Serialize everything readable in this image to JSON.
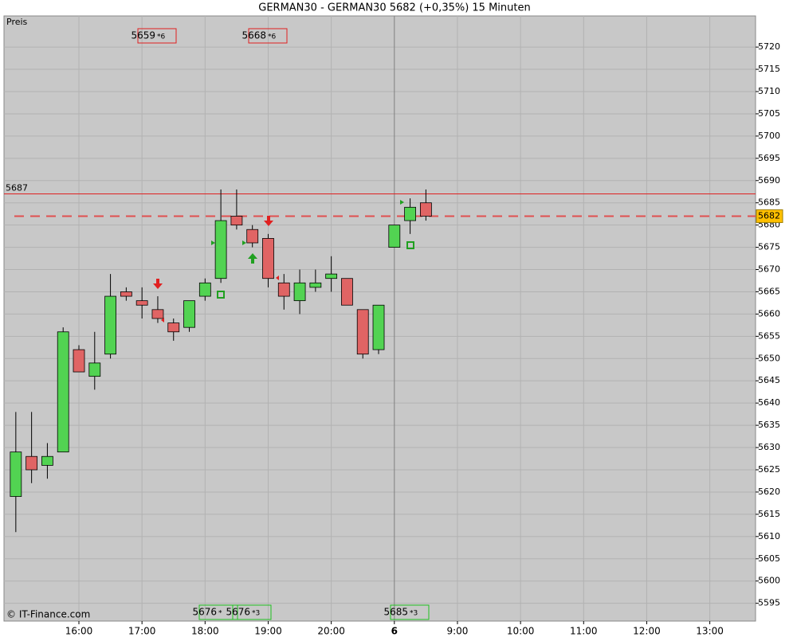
{
  "chart_data": {
    "type": "candlestick",
    "title": "GERMAN30 - GERMAN30    5682 (+0,35%)    15 Minuten",
    "panel_label": "Preis",
    "footer": "© IT-Finance.com",
    "x": [
      0,
      1,
      2,
      3,
      4,
      5,
      6,
      7,
      8,
      9,
      10,
      11,
      12,
      13,
      14,
      15,
      16,
      17,
      18,
      19,
      20,
      21,
      22,
      23,
      24,
      25,
      26
    ],
    "open": [
      5619,
      5628,
      5626,
      5629,
      5652,
      5646,
      5651,
      5665,
      5663,
      5661,
      5658,
      5657,
      5664,
      5668,
      5682,
      5679,
      5677,
      5667,
      5663,
      5666,
      5668,
      5668,
      5661,
      5652,
      5675,
      5681,
      5685
    ],
    "high": [
      5638,
      5638,
      5631,
      5657,
      5653,
      5656,
      5669,
      5666,
      5666,
      5664,
      5659,
      5663,
      5668,
      5688,
      5688,
      5680,
      5678,
      5669,
      5670,
      5670,
      5673,
      5668,
      5661,
      5662,
      5680,
      5686,
      5688
    ],
    "low": [
      5611,
      5622,
      5623,
      5629,
      5647,
      5643,
      5650,
      5663,
      5659,
      5658,
      5654,
      5656,
      5663,
      5667,
      5679,
      5675,
      5666,
      5661,
      5660,
      5665,
      5665,
      5662,
      5650,
      5651,
      5675,
      5678,
      5681
    ],
    "close": [
      5629,
      5625,
      5628,
      5656,
      5647,
      5649,
      5664,
      5664,
      5662,
      5659,
      5656,
      5663,
      5667,
      5681,
      5680,
      5676,
      5668,
      5664,
      5667,
      5667,
      5669,
      5662,
      5651,
      5662,
      5680,
      5684,
      5682
    ],
    "up_color": "#52d352",
    "down_color": "#e06464",
    "xlim": [
      -0.75,
      46.9
    ],
    "xticks": [
      {
        "value": 4,
        "label": "16:00"
      },
      {
        "value": 8,
        "label": "17:00"
      },
      {
        "value": 12,
        "label": "18:00"
      },
      {
        "value": 16,
        "label": "19:00"
      },
      {
        "value": 20,
        "label": "20:00"
      },
      {
        "value": 24,
        "label": "6"
      },
      {
        "value": 28,
        "label": "9:00"
      },
      {
        "value": 32,
        "label": "10:00"
      },
      {
        "value": 36,
        "label": "11:00"
      },
      {
        "value": 40,
        "label": "12:00"
      },
      {
        "value": 44,
        "label": "13:00"
      }
    ],
    "ylim": [
      5591,
      5727
    ],
    "yticks": [
      5595,
      5600,
      5605,
      5610,
      5615,
      5620,
      5625,
      5630,
      5635,
      5640,
      5645,
      5650,
      5655,
      5660,
      5665,
      5670,
      5675,
      5680,
      5685,
      5690,
      5695,
      5700,
      5705,
      5710,
      5715,
      5720
    ],
    "grid": true,
    "hlines": [
      {
        "value": 5687,
        "color": "#e02020",
        "style": "solid"
      },
      {
        "value": 5682,
        "color": "#e05050",
        "style": "dashed"
      }
    ],
    "top_annotations": [
      {
        "text": "5659",
        "suffix": "*6"
      },
      {
        "text": "5668",
        "suffix": "*6"
      }
    ],
    "bottom_annotations": [
      {
        "text": "5676",
        "suffix": "*"
      },
      {
        "text": "5676",
        "suffix": "*3"
      },
      {
        "text": "5685",
        "suffix": "*3"
      }
    ]
  }
}
